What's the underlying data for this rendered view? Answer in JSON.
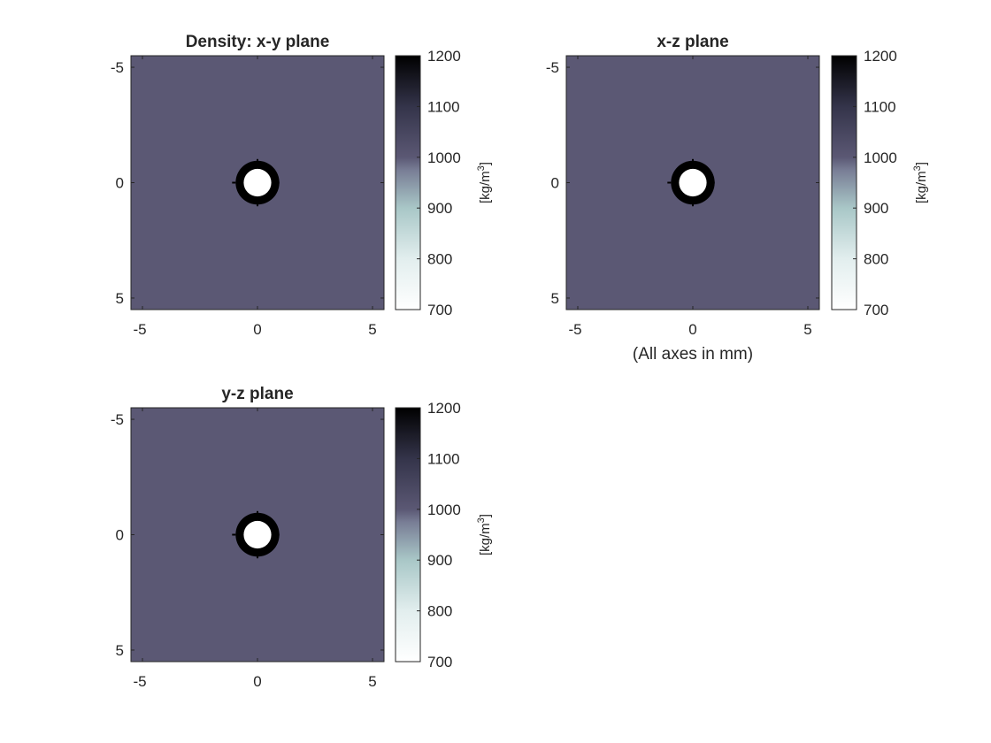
{
  "chart_data": [
    {
      "type": "heatmap",
      "title": "Density: x-y plane",
      "xlim": [
        -5.5,
        5.5
      ],
      "ylim": [
        -5.5,
        5.5
      ],
      "y_direction": "reversed",
      "xticks": [
        -5,
        0,
        5
      ],
      "yticks": [
        -5,
        0,
        5
      ],
      "xlabel": "",
      "ylabel": "",
      "field": {
        "background_value": 1000,
        "ring_value": 1200,
        "inclusion_value": 700,
        "center": [
          0,
          0
        ],
        "inner_radius": 0.6,
        "outer_radius": 0.95
      },
      "colorbar": {
        "min": 700,
        "max": 1200,
        "ticks": [
          700,
          800,
          900,
          1000,
          1100,
          1200
        ],
        "label_base": "[kg/m",
        "label_sup": "3",
        "label_end": "]",
        "colormap": "bone-reversed"
      }
    },
    {
      "type": "heatmap",
      "title": "x-z plane",
      "xlim": [
        -5.5,
        5.5
      ],
      "ylim": [
        -5.5,
        5.5
      ],
      "y_direction": "reversed",
      "xticks": [
        -5,
        0,
        5
      ],
      "yticks": [
        -5,
        0,
        5
      ],
      "xlabel": "(All axes in mm)",
      "ylabel": "",
      "field": {
        "background_value": 1000,
        "ring_value": 1200,
        "inclusion_value": 700,
        "center": [
          0,
          0
        ],
        "inner_radius": 0.6,
        "outer_radius": 0.95
      },
      "colorbar": {
        "min": 700,
        "max": 1200,
        "ticks": [
          700,
          800,
          900,
          1000,
          1100,
          1200
        ],
        "label_base": "[kg/m",
        "label_sup": "3",
        "label_end": "]",
        "colormap": "bone-reversed"
      }
    },
    {
      "type": "heatmap",
      "title": "y-z plane",
      "xlim": [
        -5.5,
        5.5
      ],
      "ylim": [
        -5.5,
        5.5
      ],
      "y_direction": "reversed",
      "xticks": [
        -5,
        0,
        5
      ],
      "yticks": [
        -5,
        0,
        5
      ],
      "xlabel": "",
      "ylabel": "",
      "field": {
        "background_value": 1000,
        "ring_value": 1200,
        "inclusion_value": 700,
        "center": [
          0,
          0
        ],
        "inner_radius": 0.6,
        "outer_radius": 0.95
      },
      "colorbar": {
        "min": 700,
        "max": 1200,
        "ticks": [
          700,
          800,
          900,
          1000,
          1100,
          1200
        ],
        "label_base": "[kg/m",
        "label_sup": "3",
        "label_end": "]",
        "colormap": "bone-reversed"
      }
    }
  ],
  "colors": {
    "background_medium": "#5b5874",
    "ring": "#000000",
    "inclusion": "#ffffff",
    "axis": "#262626"
  }
}
